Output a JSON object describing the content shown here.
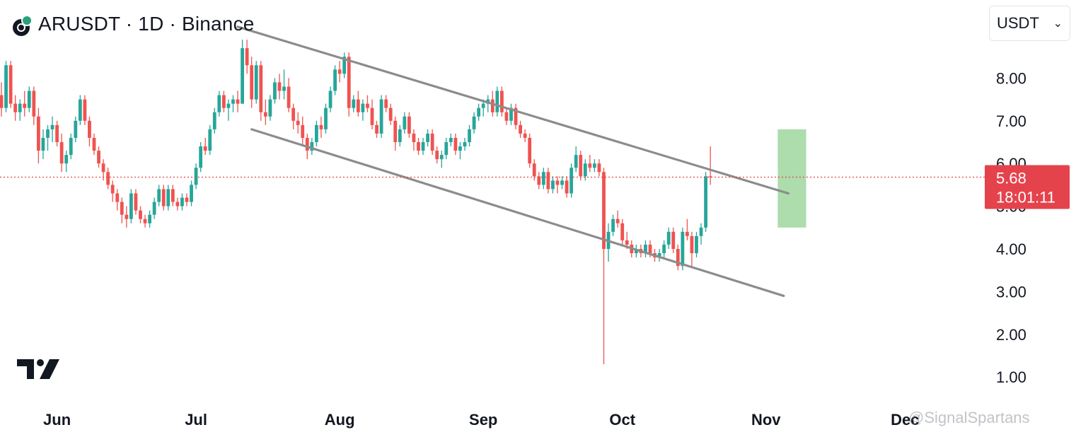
{
  "header": {
    "title": "ARUSDT · 1D · Binance"
  },
  "currency_select": {
    "value": "USDT"
  },
  "price_label": {
    "price": "5.68",
    "countdown": "18:01:11"
  },
  "watermark": "@SignalSpartans",
  "colors": {
    "up": "#26a69a",
    "down": "#ef5350",
    "channel": "#8c8c8c",
    "highlight": "#9fd69f",
    "price_line": "#e5434c",
    "text": "#131722"
  },
  "chart_data": {
    "type": "candlestick",
    "title": "ARUSDT · 1D · Binance",
    "y_axis": {
      "ticks": [
        "1.00",
        "2.00",
        "3.00",
        "4.00",
        "5.00",
        "6.00",
        "7.00",
        "8.00"
      ],
      "range": [
        0.6,
        9.8
      ],
      "side": "right"
    },
    "x_axis": {
      "ticks": [
        "Jun",
        "Jul",
        "Aug",
        "Sep",
        "Oct",
        "Nov",
        "Dec"
      ]
    },
    "grid": false,
    "current_price": 5.68,
    "candles_start": "2024-05-20",
    "candles": [
      [
        7.6,
        7.9,
        7.1,
        7.3
      ],
      [
        7.3,
        8.4,
        7.2,
        8.3
      ],
      [
        8.3,
        8.4,
        7.3,
        7.4
      ],
      [
        7.4,
        7.6,
        7.0,
        7.2
      ],
      [
        7.2,
        7.5,
        7.0,
        7.4
      ],
      [
        7.4,
        7.7,
        7.1,
        7.3
      ],
      [
        7.3,
        7.8,
        7.2,
        7.7
      ],
      [
        7.7,
        7.8,
        6.9,
        7.1
      ],
      [
        7.1,
        7.3,
        6.0,
        6.3
      ],
      [
        6.3,
        6.8,
        6.1,
        6.6
      ],
      [
        6.6,
        6.9,
        6.3,
        6.8
      ],
      [
        6.8,
        7.1,
        6.5,
        6.9
      ],
      [
        6.9,
        7.0,
        6.4,
        6.5
      ],
      [
        6.5,
        6.7,
        5.8,
        6.0
      ],
      [
        6.0,
        6.3,
        5.8,
        6.2
      ],
      [
        6.2,
        6.7,
        6.1,
        6.6
      ],
      [
        6.6,
        7.1,
        6.5,
        7.0
      ],
      [
        7.0,
        7.6,
        6.9,
        7.5
      ],
      [
        7.5,
        7.6,
        6.9,
        7.0
      ],
      [
        7.0,
        7.1,
        6.4,
        6.6
      ],
      [
        6.6,
        6.7,
        6.2,
        6.3
      ],
      [
        6.3,
        6.4,
        5.9,
        6.0
      ],
      [
        6.0,
        6.1,
        5.6,
        5.8
      ],
      [
        5.8,
        5.9,
        5.4,
        5.5
      ],
      [
        5.5,
        5.6,
        5.1,
        5.3
      ],
      [
        5.3,
        5.4,
        4.9,
        5.1
      ],
      [
        5.1,
        5.2,
        4.6,
        4.8
      ],
      [
        4.8,
        5.0,
        4.5,
        4.7
      ],
      [
        4.7,
        5.4,
        4.6,
        5.3
      ],
      [
        5.3,
        5.4,
        4.8,
        4.9
      ],
      [
        4.9,
        5.0,
        4.6,
        4.7
      ],
      [
        4.7,
        4.8,
        4.5,
        4.6
      ],
      [
        4.6,
        4.9,
        4.5,
        4.8
      ],
      [
        4.8,
        5.2,
        4.7,
        5.1
      ],
      [
        5.1,
        5.5,
        5.0,
        5.4
      ],
      [
        5.4,
        5.5,
        4.9,
        5.0
      ],
      [
        5.0,
        5.5,
        4.9,
        5.4
      ],
      [
        5.4,
        5.5,
        5.0,
        5.1
      ],
      [
        5.1,
        5.2,
        4.9,
        5.0
      ],
      [
        5.0,
        5.3,
        4.9,
        5.2
      ],
      [
        5.2,
        5.3,
        5.0,
        5.1
      ],
      [
        5.1,
        5.6,
        5.0,
        5.5
      ],
      [
        5.5,
        6.0,
        5.4,
        5.9
      ],
      [
        5.9,
        6.5,
        5.8,
        6.4
      ],
      [
        6.4,
        6.6,
        6.2,
        6.3
      ],
      [
        6.3,
        6.9,
        6.2,
        6.8
      ],
      [
        6.8,
        7.3,
        6.7,
        7.2
      ],
      [
        7.2,
        7.7,
        7.1,
        7.6
      ],
      [
        7.6,
        7.7,
        7.2,
        7.3
      ],
      [
        7.3,
        7.5,
        7.0,
        7.4
      ],
      [
        7.4,
        7.6,
        7.2,
        7.5
      ],
      [
        7.5,
        7.7,
        7.2,
        7.4
      ],
      [
        7.4,
        8.9,
        7.4,
        8.7
      ],
      [
        8.7,
        8.9,
        8.1,
        8.3
      ],
      [
        8.3,
        8.5,
        7.3,
        7.5
      ],
      [
        7.5,
        8.4,
        7.4,
        8.3
      ],
      [
        8.3,
        8.4,
        7.0,
        7.2
      ],
      [
        7.2,
        7.5,
        6.9,
        7.1
      ],
      [
        7.1,
        7.6,
        7.0,
        7.5
      ],
      [
        7.5,
        8.0,
        7.4,
        7.9
      ],
      [
        7.9,
        8.1,
        7.5,
        7.7
      ],
      [
        7.7,
        8.2,
        7.5,
        7.8
      ],
      [
        7.8,
        8.0,
        7.2,
        7.3
      ],
      [
        7.3,
        7.4,
        6.8,
        7.0
      ],
      [
        7.0,
        7.2,
        6.7,
        6.9
      ],
      [
        6.9,
        7.1,
        6.4,
        6.6
      ],
      [
        6.6,
        6.7,
        6.1,
        6.3
      ],
      [
        6.3,
        6.6,
        6.2,
        6.5
      ],
      [
        6.5,
        7.0,
        6.4,
        6.9
      ],
      [
        6.9,
        7.1,
        6.6,
        6.8
      ],
      [
        6.8,
        7.4,
        6.7,
        7.3
      ],
      [
        7.3,
        7.8,
        7.2,
        7.7
      ],
      [
        7.7,
        8.3,
        7.6,
        8.2
      ],
      [
        8.2,
        8.4,
        7.9,
        8.1
      ],
      [
        8.1,
        8.6,
        8.0,
        8.5
      ],
      [
        8.5,
        8.6,
        7.1,
        7.3
      ],
      [
        7.3,
        7.6,
        7.2,
        7.5
      ],
      [
        7.5,
        7.7,
        7.1,
        7.2
      ],
      [
        7.2,
        7.5,
        7.0,
        7.4
      ],
      [
        7.4,
        7.6,
        7.2,
        7.3
      ],
      [
        7.3,
        7.5,
        6.8,
        6.9
      ],
      [
        6.9,
        7.0,
        6.6,
        6.7
      ],
      [
        6.7,
        7.6,
        6.6,
        7.5
      ],
      [
        7.5,
        7.6,
        7.2,
        7.3
      ],
      [
        7.3,
        7.4,
        6.9,
        7.0
      ],
      [
        7.0,
        7.1,
        6.3,
        6.5
      ],
      [
        6.5,
        6.9,
        6.4,
        6.8
      ],
      [
        6.8,
        7.2,
        6.7,
        7.1
      ],
      [
        7.1,
        7.2,
        6.6,
        6.7
      ],
      [
        6.7,
        6.8,
        6.3,
        6.5
      ],
      [
        6.5,
        6.6,
        6.2,
        6.3
      ],
      [
        6.3,
        6.6,
        6.2,
        6.5
      ],
      [
        6.5,
        6.8,
        6.4,
        6.7
      ],
      [
        6.7,
        6.8,
        6.2,
        6.3
      ],
      [
        6.3,
        6.4,
        6.0,
        6.1
      ],
      [
        6.1,
        6.3,
        5.9,
        6.2
      ],
      [
        6.2,
        6.6,
        6.1,
        6.5
      ],
      [
        6.5,
        6.7,
        6.4,
        6.6
      ],
      [
        6.6,
        6.7,
        6.2,
        6.3
      ],
      [
        6.3,
        6.5,
        6.1,
        6.4
      ],
      [
        6.4,
        6.6,
        6.3,
        6.5
      ],
      [
        6.5,
        6.9,
        6.4,
        6.8
      ],
      [
        6.8,
        7.2,
        6.7,
        7.1
      ],
      [
        7.1,
        7.4,
        7.0,
        7.3
      ],
      [
        7.3,
        7.5,
        7.1,
        7.4
      ],
      [
        7.4,
        7.6,
        7.2,
        7.5
      ],
      [
        7.5,
        7.7,
        7.1,
        7.2
      ],
      [
        7.2,
        7.8,
        7.1,
        7.7
      ],
      [
        7.7,
        7.8,
        7.1,
        7.2
      ],
      [
        7.2,
        7.3,
        6.9,
        7.0
      ],
      [
        7.0,
        7.4,
        6.9,
        7.3
      ],
      [
        7.3,
        7.4,
        6.8,
        6.9
      ],
      [
        6.9,
        7.0,
        6.6,
        6.7
      ],
      [
        6.7,
        6.8,
        6.5,
        6.6
      ],
      [
        6.6,
        6.7,
        5.9,
        6.0
      ],
      [
        6.0,
        6.1,
        5.6,
        5.7
      ],
      [
        5.7,
        5.8,
        5.4,
        5.5
      ],
      [
        5.5,
        5.9,
        5.4,
        5.8
      ],
      [
        5.8,
        5.9,
        5.3,
        5.4
      ],
      [
        5.4,
        5.7,
        5.3,
        5.6
      ],
      [
        5.6,
        5.7,
        5.3,
        5.5
      ],
      [
        5.5,
        5.7,
        5.4,
        5.6
      ],
      [
        5.6,
        5.7,
        5.2,
        5.3
      ],
      [
        5.3,
        6.0,
        5.2,
        5.9
      ],
      [
        5.9,
        6.4,
        5.8,
        6.2
      ],
      [
        6.2,
        6.3,
        5.6,
        5.7
      ],
      [
        5.7,
        6.1,
        5.6,
        6.0
      ],
      [
        6.0,
        6.2,
        5.8,
        5.9
      ],
      [
        5.9,
        6.1,
        5.8,
        6.0
      ],
      [
        6.0,
        6.1,
        5.7,
        5.8
      ],
      [
        5.8,
        5.9,
        1.3,
        4.0
      ],
      [
        4.0,
        4.6,
        3.7,
        4.4
      ],
      [
        4.4,
        4.8,
        4.3,
        4.7
      ],
      [
        4.7,
        4.9,
        4.5,
        4.6
      ],
      [
        4.6,
        4.7,
        4.1,
        4.2
      ],
      [
        4.2,
        4.4,
        4.0,
        4.1
      ],
      [
        4.1,
        4.2,
        3.8,
        3.9
      ],
      [
        3.9,
        4.1,
        3.8,
        4.0
      ],
      [
        4.0,
        4.1,
        3.8,
        3.9
      ],
      [
        3.9,
        4.2,
        3.8,
        4.1
      ],
      [
        4.1,
        4.2,
        3.8,
        3.9
      ],
      [
        3.9,
        4.0,
        3.7,
        3.8
      ],
      [
        3.8,
        4.0,
        3.7,
        3.9
      ],
      [
        3.9,
        4.2,
        3.8,
        4.1
      ],
      [
        4.1,
        4.5,
        4.0,
        4.4
      ],
      [
        4.4,
        4.5,
        3.9,
        4.0
      ],
      [
        4.0,
        4.1,
        3.5,
        3.6
      ],
      [
        3.6,
        4.5,
        3.5,
        4.4
      ],
      [
        4.4,
        4.7,
        4.2,
        4.3
      ],
      [
        4.3,
        4.4,
        3.6,
        3.9
      ],
      [
        3.9,
        4.4,
        3.8,
        4.3
      ],
      [
        4.3,
        4.6,
        4.1,
        4.5
      ],
      [
        4.5,
        5.8,
        4.4,
        5.7
      ],
      [
        5.7,
        6.4,
        5.5,
        5.68
      ]
    ],
    "annotations": {
      "channel_upper": [
        [
          "2024-07-10",
          9.2
        ],
        [
          "2024-11-04",
          5.3
        ]
      ],
      "channel_lower": [
        [
          "2024-07-13",
          6.8
        ],
        [
          "2024-11-03",
          2.9
        ]
      ],
      "highlight_box": {
        "from": "2024-11-04",
        "to": "2024-11-06",
        "low": 4.5,
        "high": 6.8
      }
    }
  }
}
